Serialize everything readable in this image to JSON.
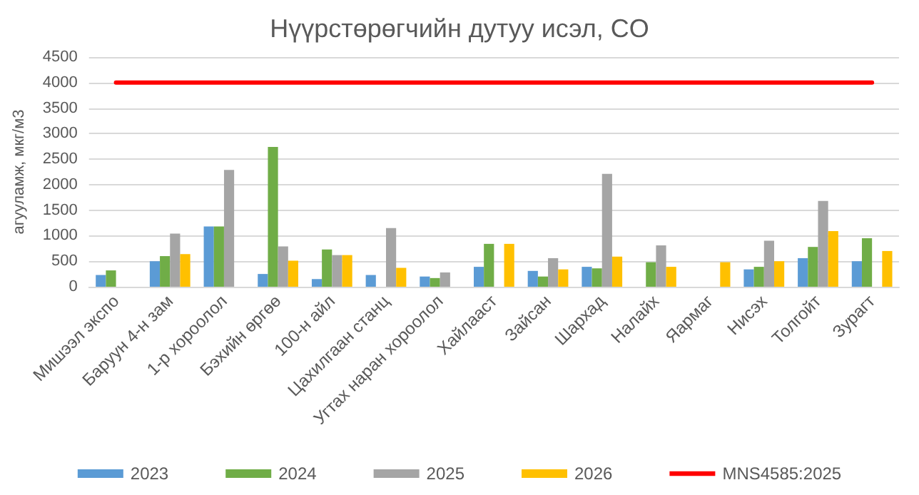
{
  "chart_data": {
    "type": "bar",
    "title": "Нүүрстөрөгчийн дутуу исэл, CO",
    "ylabel": "агууламж, мкг/м3",
    "categories": [
      "Мишээл экспо",
      "Баруун 4-н зам",
      "1-р хороолол",
      "Бэхийн өргөө",
      "100-н айл",
      "Цахилгаан станц",
      "Угтах наран хороолол",
      "Хайлааст",
      "Зайсан",
      "Шархад",
      "Налайх",
      "Яармаг",
      "Нисэх",
      "Толгойт",
      "Зурагт"
    ],
    "series": [
      {
        "name": "2023",
        "color": "#5b9bd5",
        "values": [
          230,
          500,
          1180,
          250,
          150,
          230,
          200,
          390,
          310,
          390,
          null,
          null,
          340,
          560,
          500
        ]
      },
      {
        "name": "2024",
        "color": "#70ad47",
        "values": [
          320,
          600,
          1180,
          2740,
          730,
          null,
          170,
          840,
          200,
          360,
          480,
          null,
          390,
          780,
          950
        ]
      },
      {
        "name": "2025",
        "color": "#a5a5a5",
        "values": [
          null,
          1040,
          2290,
          790,
          620,
          1150,
          280,
          null,
          560,
          2210,
          810,
          null,
          900,
          1680,
          null
        ]
      },
      {
        "name": "2026",
        "color": "#ffc000",
        "values": [
          null,
          640,
          null,
          510,
          620,
          370,
          null,
          840,
          340,
          590,
          390,
          480,
          500,
          1090,
          700
        ]
      },
      {
        "name": "MNS4585:2025",
        "type": "line",
        "color": "#ff0000",
        "marker": "none",
        "values": [
          4000,
          4000,
          4000,
          4000,
          4000,
          4000,
          4000,
          4000,
          4000,
          4000,
          4000,
          4000,
          4000,
          4000,
          4000
        ]
      }
    ],
    "ylim": [
      0,
      4500
    ],
    "yticks": [
      0,
      500,
      1000,
      1500,
      2000,
      2500,
      3000,
      3500,
      4000,
      4500
    ],
    "grid": "y",
    "legend": "bottom"
  }
}
